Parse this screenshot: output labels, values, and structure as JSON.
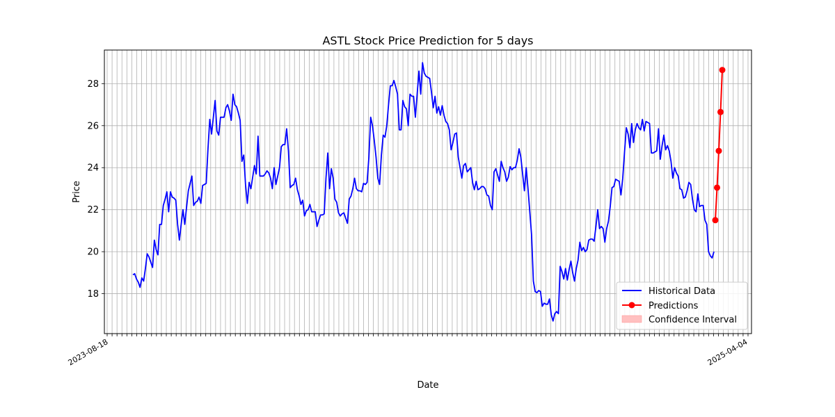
{
  "chart_data": {
    "type": "line",
    "title": "ASTL Stock Price Prediction for 5 days",
    "xlabel": "Date",
    "ylabel": "Price",
    "ylim": [
      16.1,
      29.6
    ],
    "yticks": [
      18,
      20,
      22,
      24,
      26,
      28
    ],
    "grid": true,
    "legend_position": "lower-right",
    "x_tick_labels_visible": [
      "2023-08-18",
      "2025-04-04"
    ],
    "series": [
      {
        "name": "Historical Data",
        "color": "#0000ff",
        "values": [
          18.9,
          18.95,
          18.7,
          18.55,
          18.3,
          18.75,
          18.6,
          19.2,
          19.9,
          19.75,
          19.5,
          19.25,
          20.55,
          20.1,
          19.85,
          21.3,
          21.3,
          22.2,
          22.5,
          22.85,
          21.9,
          22.85,
          22.6,
          22.55,
          22.45,
          21.3,
          20.55,
          21.3,
          22.0,
          21.3,
          22.1,
          22.9,
          23.25,
          23.6,
          22.2,
          22.35,
          22.4,
          22.6,
          22.3,
          23.15,
          23.2,
          23.25,
          24.9,
          26.3,
          25.6,
          26.4,
          27.2,
          25.75,
          25.55,
          26.4,
          26.4,
          26.4,
          26.85,
          27.0,
          26.7,
          26.25,
          27.5,
          27.0,
          26.9,
          26.6,
          26.25,
          24.3,
          24.6,
          23.2,
          22.3,
          23.3,
          23.0,
          23.55,
          24.1,
          23.7,
          25.5,
          23.6,
          23.6,
          23.6,
          23.7,
          23.85,
          23.75,
          23.5,
          23.0,
          24.0,
          23.2,
          23.6,
          24.0,
          25.0,
          25.1,
          25.1,
          25.85,
          24.8,
          23.05,
          23.15,
          23.2,
          23.5,
          22.95,
          22.65,
          22.25,
          22.45,
          21.7,
          21.95,
          22.0,
          22.25,
          21.9,
          21.9,
          21.9,
          21.2,
          21.5,
          21.75,
          21.75,
          21.8,
          23.5,
          24.7,
          23.0,
          23.95,
          23.5,
          22.5,
          22.35,
          21.85,
          21.7,
          21.8,
          21.85,
          21.6,
          21.35,
          22.5,
          22.65,
          23.0,
          23.5,
          23.0,
          22.9,
          22.9,
          22.85,
          23.25,
          23.2,
          23.3,
          24.5,
          26.4,
          26.0,
          25.3,
          24.5,
          23.5,
          23.2,
          24.6,
          25.55,
          25.45,
          26.0,
          27.0,
          27.9,
          27.9,
          28.15,
          27.85,
          27.5,
          25.8,
          25.8,
          27.2,
          26.9,
          26.8,
          26.0,
          27.5,
          27.4,
          27.4,
          26.4,
          27.5,
          28.6,
          27.5,
          29.0,
          28.5,
          28.35,
          28.3,
          28.25,
          27.6,
          26.85,
          27.4,
          26.6,
          26.9,
          26.5,
          26.95,
          26.5,
          26.2,
          26.1,
          25.8,
          24.85,
          25.2,
          25.6,
          25.65,
          24.5,
          24.0,
          23.5,
          24.1,
          24.2,
          23.8,
          23.9,
          24.0,
          23.3,
          22.95,
          23.35,
          22.95,
          23.0,
          23.1,
          23.1,
          23.0,
          22.7,
          22.65,
          22.2,
          22.0,
          23.8,
          23.95,
          23.65,
          23.35,
          24.3,
          24.0,
          23.8,
          23.35,
          23.55,
          24.05,
          23.9,
          24.0,
          24.0,
          24.35,
          24.9,
          24.5,
          23.7,
          22.9,
          24.0,
          23.0,
          21.9,
          20.8,
          18.6,
          18.1,
          18.05,
          18.15,
          18.1,
          17.4,
          17.55,
          17.5,
          17.5,
          17.75,
          17.0,
          16.7,
          17.05,
          17.15,
          17.05,
          19.3,
          19.05,
          18.7,
          19.2,
          18.65,
          19.15,
          19.55,
          19.0,
          18.6,
          19.2,
          19.6,
          20.45,
          20.05,
          20.2,
          20.0,
          20.1,
          20.55,
          20.6,
          20.6,
          20.5,
          21.2,
          22.0,
          21.1,
          21.2,
          21.1,
          20.45,
          21.1,
          21.45,
          22.15,
          23.05,
          23.1,
          23.45,
          23.4,
          23.35,
          22.7,
          23.5,
          24.75,
          25.9,
          25.6,
          24.95,
          26.1,
          25.2,
          25.8,
          26.1,
          25.9,
          25.8,
          26.3,
          25.75,
          26.2,
          26.15,
          26.1,
          24.7,
          24.7,
          24.75,
          24.8,
          25.85,
          24.4,
          25.05,
          25.55,
          24.85,
          25.05,
          24.8,
          24.3,
          23.5,
          24.0,
          23.75,
          23.6,
          23.0,
          22.95,
          22.55,
          22.6,
          22.9,
          23.3,
          23.2,
          22.5,
          22.0,
          21.9,
          22.75,
          22.15,
          22.2,
          22.2,
          21.5,
          21.3,
          20.0,
          19.8,
          19.7,
          20.0
        ]
      },
      {
        "name": "Predictions",
        "color": "#ff0000",
        "marker": "circle",
        "values": [
          21.5,
          23.05,
          24.8,
          26.65,
          28.65
        ]
      },
      {
        "name": "Confidence Interval",
        "color": "#ffc0c0",
        "values": []
      }
    ]
  }
}
